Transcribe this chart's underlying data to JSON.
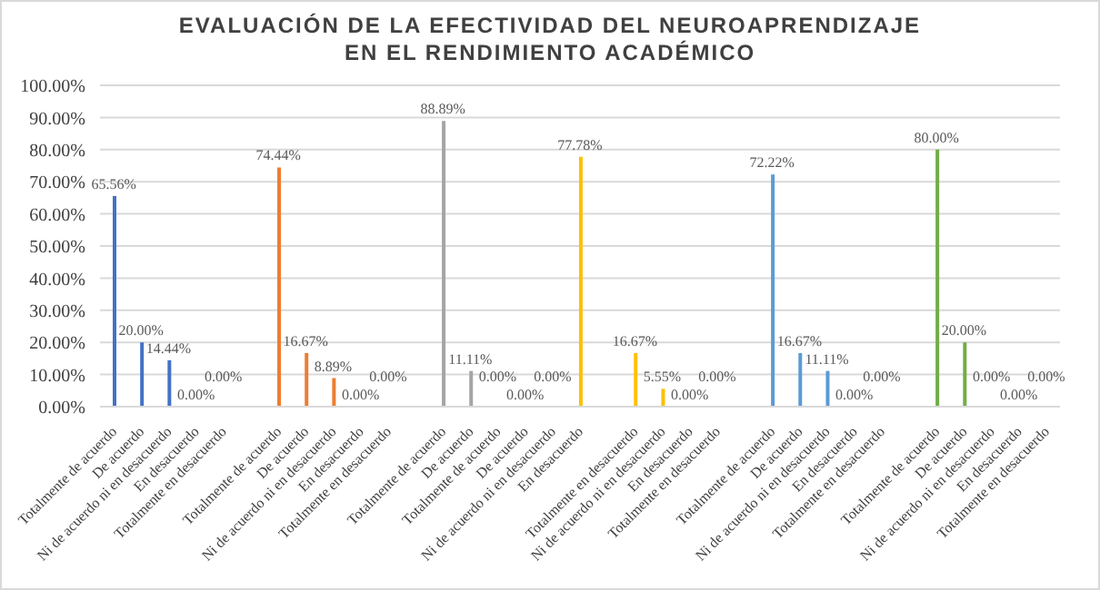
{
  "chart_data": {
    "type": "bar",
    "title": "EVALUACIÓN DE LA EFECTIVIDAD DEL NEUROAPRENDIZAJE EN EL RENDIMIENTO ACADÉMICO",
    "categories": [
      "Totalmente de acuerdo",
      "De acuerdo",
      "Ni de acuerdo ni en desacuerdo",
      "En desacuerdo",
      "Totalmente en desacuerdo",
      null,
      "Totalmente de acuerdo",
      "De acuerdo",
      "Ni de acuerdo ni en desacuerdo",
      "En desacuerdo",
      "Totalmente en desacuerdo",
      null,
      "Totalmente de acuerdo",
      "De acuerdo",
      "Totalmente de acuerdo",
      "De acuerdo",
      "Ni de acuerdo ni en desacuerdo",
      "En desacuerdo",
      null,
      "Totalmente en desacuerdo",
      "Ni de acuerdo ni en desacuerdo",
      "En desacuerdo",
      "Totalmente en desacuerdo",
      null,
      "Totalmente de acuerdo",
      "De acuerdo",
      "Ni de acuerdo ni en desacuerdo",
      "En desacuerdo",
      "Totalmente en desacuerdo",
      null,
      "Totalmente de acuerdo",
      "De acuerdo",
      "Ni de acuerdo ni en desacuerdo",
      "En desacuerdo",
      "Totalmente en desacuerdo"
    ],
    "values": [
      65.56,
      20,
      14.44,
      0,
      0,
      null,
      74.44,
      16.67,
      8.89,
      0,
      0,
      null,
      88.89,
      11.11,
      0,
      0,
      0,
      77.78,
      null,
      16.67,
      5.55,
      0,
      0,
      null,
      72.22,
      16.67,
      11.11,
      0,
      0,
      null,
      80,
      20,
      0,
      0,
      0
    ],
    "value_labels": [
      "65.56%",
      "20.00%",
      "14.44%",
      "0.00%",
      "0.00%",
      null,
      "74.44%",
      "16.67%",
      "8.89%",
      "0.00%",
      "0.00%",
      null,
      "88.89%",
      "11.11%",
      "0.00%",
      "0.00%",
      "0.00%",
      "77.78%",
      null,
      "16.67%",
      "5.55%",
      "0.00%",
      "0.00%",
      null,
      "72.22%",
      "16.67%",
      "11.11%",
      "0.00%",
      "0.00%",
      null,
      "80.00%",
      "20.00%",
      "0.00%",
      "0.00%",
      "0.00%"
    ],
    "colors": [
      "#4472c4",
      "#4472c4",
      "#4472c4",
      "#4472c4",
      "#4472c4",
      null,
      "#ed7d31",
      "#ed7d31",
      "#ed7d31",
      "#ed7d31",
      "#ed7d31",
      null,
      "#a5a5a5",
      "#a5a5a5",
      "#a5a5a5",
      "#a5a5a5",
      "#a5a5a5",
      "#ffc000",
      null,
      "#ffc000",
      "#ffc000",
      "#ffc000",
      "#ffc000",
      null,
      "#5b9bd5",
      "#5b9bd5",
      "#5b9bd5",
      "#5b9bd5",
      "#5b9bd5",
      null,
      "#70ad47",
      "#70ad47",
      "#70ad47",
      "#70ad47",
      "#70ad47"
    ],
    "ylim": [
      0,
      100
    ],
    "yticks": [
      {
        "value": 0,
        "label": "0.00%"
      },
      {
        "value": 10,
        "label": "10.00%"
      },
      {
        "value": 20,
        "label": "20.00%"
      },
      {
        "value": 30,
        "label": "30.00%"
      },
      {
        "value": 40,
        "label": "40.00%"
      },
      {
        "value": 50,
        "label": "50.00%"
      },
      {
        "value": 60,
        "label": "60.00%"
      },
      {
        "value": 70,
        "label": "70.00%"
      },
      {
        "value": 80,
        "label": "80.00%"
      },
      {
        "value": 90,
        "label": "90.00%"
      },
      {
        "value": 100,
        "label": "100.00%"
      }
    ],
    "grid": "y",
    "legend": false
  }
}
